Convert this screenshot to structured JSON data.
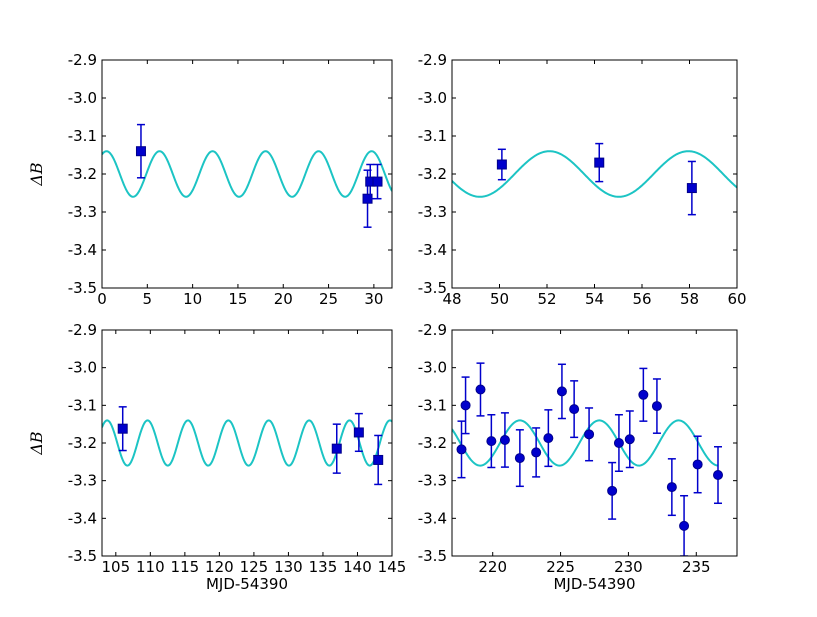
{
  "chart_data": [
    {
      "type": "scatter",
      "panel": "top-left",
      "xlim": [
        0,
        32
      ],
      "ylim": [
        -2.9,
        -3.5
      ],
      "xticks": [
        0,
        5,
        10,
        15,
        20,
        25,
        30
      ],
      "xtick_labels": [
        "0",
        "5",
        "10",
        "15",
        "20",
        "25",
        "30"
      ],
      "yticks": [
        -2.9,
        -3.0,
        -3.1,
        -3.2,
        -3.3,
        -3.4,
        -3.5
      ],
      "ytick_labels": [
        "-2.9",
        "-3.0",
        "-3.1",
        "-3.2",
        "-3.3",
        "-3.4",
        "-3.5"
      ],
      "xlabel": "",
      "ylabel": "ΔB",
      "marker": "square",
      "points": [
        {
          "x": 4.3,
          "y": -3.14,
          "err": 0.07
        },
        {
          "x": 29.3,
          "y": -3.265,
          "err": 0.075
        },
        {
          "x": 29.6,
          "y": -3.22,
          "err": 0.045
        },
        {
          "x": 30.4,
          "y": -3.22,
          "err": 0.045
        }
      ],
      "model": {
        "center": -3.2,
        "amplitude": 0.06,
        "period": 5.85,
        "min_at": 12.2
      }
    },
    {
      "type": "scatter",
      "panel": "top-right",
      "xlim": [
        48,
        60
      ],
      "ylim": [
        -2.9,
        -3.5
      ],
      "xticks": [
        48,
        50,
        52,
        54,
        56,
        58,
        60
      ],
      "xtick_labels": [
        "48",
        "50",
        "52",
        "54",
        "56",
        "58",
        "60"
      ],
      "yticks": [
        -2.9,
        -3.0,
        -3.1,
        -3.2,
        -3.3,
        -3.4,
        -3.5
      ],
      "ytick_labels": [
        "-2.9",
        "-3.0",
        "-3.1",
        "-3.2",
        "-3.3",
        "-3.4",
        "-3.5"
      ],
      "xlabel": "",
      "ylabel": "",
      "marker": "square",
      "points": [
        {
          "x": 50.1,
          "y": -3.175,
          "err": 0.04
        },
        {
          "x": 54.2,
          "y": -3.17,
          "err": 0.05
        },
        {
          "x": 58.1,
          "y": -3.237,
          "err": 0.07
        }
      ],
      "model": {
        "center": -3.2,
        "amplitude": 0.06,
        "period": 5.85,
        "min_at": 52.1
      }
    },
    {
      "type": "scatter",
      "panel": "bottom-left",
      "xlim": [
        103,
        145
      ],
      "ylim": [
        -2.9,
        -3.5
      ],
      "xticks": [
        105,
        110,
        115,
        120,
        125,
        130,
        135,
        140,
        145
      ],
      "xtick_labels": [
        "105",
        "110",
        "115",
        "120",
        "125",
        "130",
        "135",
        "140",
        "145"
      ],
      "yticks": [
        -2.9,
        -3.0,
        -3.1,
        -3.2,
        -3.3,
        -3.4,
        -3.5
      ],
      "ytick_labels": [
        "-2.9",
        "-3.0",
        "-3.1",
        "-3.2",
        "-3.3",
        "-3.4",
        "-3.5"
      ],
      "xlabel": "MJD-54390",
      "ylabel": "ΔB",
      "marker": "square",
      "points": [
        {
          "x": 106.0,
          "y": -3.162,
          "err": 0.058
        },
        {
          "x": 137.0,
          "y": -3.215,
          "err": 0.065
        },
        {
          "x": 140.2,
          "y": -3.172,
          "err": 0.05
        },
        {
          "x": 143.0,
          "y": -3.245,
          "err": 0.065
        }
      ],
      "model": {
        "center": -3.2,
        "amplitude": 0.06,
        "period": 5.85,
        "min_at": 109.6
      }
    },
    {
      "type": "scatter",
      "panel": "bottom-right",
      "xlim": [
        217,
        238
      ],
      "ylim": [
        -2.9,
        -3.5
      ],
      "xticks": [
        220,
        225,
        230,
        235
      ],
      "xtick_labels": [
        "220",
        "225",
        "230",
        "235"
      ],
      "yticks": [
        -2.9,
        -3.0,
        -3.1,
        -3.2,
        -3.3,
        -3.4,
        -3.5
      ],
      "ytick_labels": [
        "-2.9",
        "-3.0",
        "-3.1",
        "-3.2",
        "-3.3",
        "-3.4",
        "-3.5"
      ],
      "xlabel": "MJD-54390",
      "ylabel": "",
      "marker": "circle",
      "points": [
        {
          "x": 217.7,
          "y": -3.217,
          "err": 0.075
        },
        {
          "x": 218.0,
          "y": -3.1,
          "err": 0.075
        },
        {
          "x": 219.1,
          "y": -3.058,
          "err": 0.07
        },
        {
          "x": 219.9,
          "y": -3.195,
          "err": 0.07
        },
        {
          "x": 220.9,
          "y": -3.192,
          "err": 0.072
        },
        {
          "x": 222.0,
          "y": -3.24,
          "err": 0.075
        },
        {
          "x": 223.2,
          "y": -3.225,
          "err": 0.065
        },
        {
          "x": 224.1,
          "y": -3.187,
          "err": 0.075
        },
        {
          "x": 225.1,
          "y": -3.063,
          "err": 0.072
        },
        {
          "x": 226.0,
          "y": -3.11,
          "err": 0.075
        },
        {
          "x": 227.1,
          "y": -3.177,
          "err": 0.07
        },
        {
          "x": 228.8,
          "y": -3.327,
          "err": 0.075
        },
        {
          "x": 229.3,
          "y": -3.2,
          "err": 0.075
        },
        {
          "x": 230.1,
          "y": -3.19,
          "err": 0.075
        },
        {
          "x": 231.1,
          "y": -3.072,
          "err": 0.07
        },
        {
          "x": 232.1,
          "y": -3.102,
          "err": 0.072
        },
        {
          "x": 233.2,
          "y": -3.317,
          "err": 0.075
        },
        {
          "x": 234.1,
          "y": -3.42,
          "err": 0.08
        },
        {
          "x": 235.1,
          "y": -3.257,
          "err": 0.075
        },
        {
          "x": 236.6,
          "y": -3.285,
          "err": 0.075
        }
      ],
      "model": {
        "center": -3.2,
        "amplitude": 0.06,
        "period": 5.85,
        "min_at": 222.0,
        "x_range": [
          217,
          236.6
        ]
      }
    }
  ],
  "colors": {
    "model_line": "#1cc4c4",
    "marker_fill": "#0000cc",
    "marker_edge": "#00008b",
    "errorbar": "#0000cc",
    "axes": "#000000"
  }
}
